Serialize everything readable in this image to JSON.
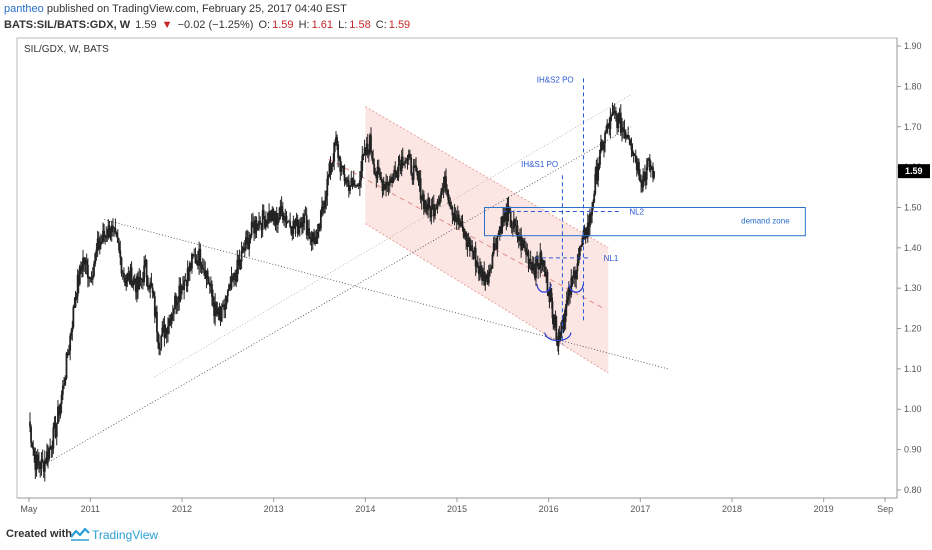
{
  "header": {
    "author": "pantheo",
    "published_text": "published on TradingView.com, February 25, 2017 04:40 EST",
    "symbol_line": "BATS:SIL/BATS:GDX, W",
    "last": "1.59",
    "change_arrow": "▼",
    "change": "−0.02 (−1.25%)",
    "open_label": "O:",
    "open": "1.59",
    "high_label": "H:",
    "high": "1.61",
    "low_label": "L:",
    "low": "1.58",
    "close_label": "C:",
    "close": "1.59"
  },
  "footer": {
    "created_with": "Created with",
    "brand": "TradingView"
  },
  "colors": {
    "candle": "#222222",
    "channel_fill": "#f8c8c4",
    "annotation_blue": "#2b58d6",
    "demand_zone": "#2a6fc9",
    "price_badge_bg": "#000000",
    "price_badge_text": "#ffffff",
    "grid": "#e6e6e6"
  },
  "chart_data": {
    "type": "candlestick",
    "title": "SIL/GDX, W, BATS",
    "y_axis_ticks": [
      "1.90",
      "1.80",
      "1.70",
      "1.60",
      "1.50",
      "1.40",
      "1.30",
      "1.20",
      "1.10",
      "1.00",
      "0.90",
      "0.80"
    ],
    "ylim": [
      0.78,
      1.92
    ],
    "x_axis_ticks": [
      "May",
      "2011",
      "2012",
      "2013",
      "2014",
      "2015",
      "2016",
      "2017",
      "2018",
      "2019",
      "Sep"
    ],
    "x_tick_values": [
      2010.33,
      2011.0,
      2012.0,
      2013.0,
      2014.0,
      2015.0,
      2016.0,
      2017.0,
      2018.0,
      2019.0,
      2019.67
    ],
    "xlim": [
      2010.2,
      2019.8
    ],
    "last_price_label": "1.59",
    "series_weekly_close": [
      [
        2010.33,
        0.97
      ],
      [
        2010.4,
        0.87
      ],
      [
        2010.48,
        0.86
      ],
      [
        2010.55,
        0.9
      ],
      [
        2010.62,
        0.95
      ],
      [
        2010.7,
        1.05
      ],
      [
        2010.78,
        1.18
      ],
      [
        2010.85,
        1.3
      ],
      [
        2010.92,
        1.37
      ],
      [
        2011.0,
        1.33
      ],
      [
        2011.08,
        1.4
      ],
      [
        2011.15,
        1.43
      ],
      [
        2011.22,
        1.45
      ],
      [
        2011.3,
        1.4
      ],
      [
        2011.38,
        1.32
      ],
      [
        2011.45,
        1.33
      ],
      [
        2011.52,
        1.3
      ],
      [
        2011.6,
        1.35
      ],
      [
        2011.68,
        1.28
      ],
      [
        2011.75,
        1.17
      ],
      [
        2011.82,
        1.2
      ],
      [
        2011.9,
        1.25
      ],
      [
        2011.97,
        1.3
      ],
      [
        2012.05,
        1.33
      ],
      [
        2012.12,
        1.37
      ],
      [
        2012.2,
        1.38
      ],
      [
        2012.28,
        1.33
      ],
      [
        2012.35,
        1.25
      ],
      [
        2012.42,
        1.22
      ],
      [
        2012.5,
        1.28
      ],
      [
        2012.58,
        1.33
      ],
      [
        2012.65,
        1.38
      ],
      [
        2012.72,
        1.42
      ],
      [
        2012.8,
        1.46
      ],
      [
        2012.88,
        1.47
      ],
      [
        2012.95,
        1.48
      ],
      [
        2013.02,
        1.47
      ],
      [
        2013.1,
        1.49
      ],
      [
        2013.18,
        1.46
      ],
      [
        2013.25,
        1.45
      ],
      [
        2013.32,
        1.48
      ],
      [
        2013.4,
        1.43
      ],
      [
        2013.48,
        1.42
      ],
      [
        2013.55,
        1.52
      ],
      [
        2013.62,
        1.6
      ],
      [
        2013.68,
        1.66
      ],
      [
        2013.75,
        1.58
      ],
      [
        2013.82,
        1.56
      ],
      [
        2013.9,
        1.55
      ],
      [
        2013.98,
        1.62
      ],
      [
        2014.05,
        1.66
      ],
      [
        2014.12,
        1.58
      ],
      [
        2014.2,
        1.56
      ],
      [
        2014.28,
        1.57
      ],
      [
        2014.35,
        1.6
      ],
      [
        2014.42,
        1.63
      ],
      [
        2014.5,
        1.6
      ],
      [
        2014.58,
        1.56
      ],
      [
        2014.65,
        1.51
      ],
      [
        2014.72,
        1.49
      ],
      [
        2014.8,
        1.53
      ],
      [
        2014.88,
        1.56
      ],
      [
        2014.95,
        1.5
      ],
      [
        2015.02,
        1.46
      ],
      [
        2015.1,
        1.42
      ],
      [
        2015.18,
        1.39
      ],
      [
        2015.25,
        1.34
      ],
      [
        2015.32,
        1.32
      ],
      [
        2015.4,
        1.4
      ],
      [
        2015.48,
        1.46
      ],
      [
        2015.55,
        1.48
      ],
      [
        2015.62,
        1.45
      ],
      [
        2015.7,
        1.41
      ],
      [
        2015.78,
        1.38
      ],
      [
        2015.85,
        1.35
      ],
      [
        2015.92,
        1.37
      ],
      [
        2016.0,
        1.3
      ],
      [
        2016.05,
        1.24
      ],
      [
        2016.1,
        1.17
      ],
      [
        2016.15,
        1.22
      ],
      [
        2016.22,
        1.28
      ],
      [
        2016.3,
        1.36
      ],
      [
        2016.38,
        1.42
      ],
      [
        2016.45,
        1.47
      ],
      [
        2016.52,
        1.58
      ],
      [
        2016.58,
        1.65
      ],
      [
        2016.65,
        1.7
      ],
      [
        2016.72,
        1.73
      ],
      [
        2016.8,
        1.7
      ],
      [
        2016.88,
        1.68
      ],
      [
        2016.95,
        1.62
      ],
      [
        2017.02,
        1.57
      ],
      [
        2017.08,
        1.6
      ],
      [
        2017.15,
        1.59
      ]
    ],
    "annotations": {
      "ihs2_po": "IH&S2 PO",
      "ihs1_po": "IH&S1 PO",
      "nl2": "NL2",
      "nl1": "NL1",
      "demand_zone": "demand zone"
    },
    "demand_zone_range": [
      1.43,
      1.5
    ],
    "demand_zone_start": 2015.3,
    "demand_zone_end": 2018.8,
    "nl2_level": 1.49,
    "nl1_level": 1.375,
    "ihs1_po_level": 1.58,
    "ihs2_po_level": 1.82,
    "grid": false,
    "legend": "none"
  }
}
